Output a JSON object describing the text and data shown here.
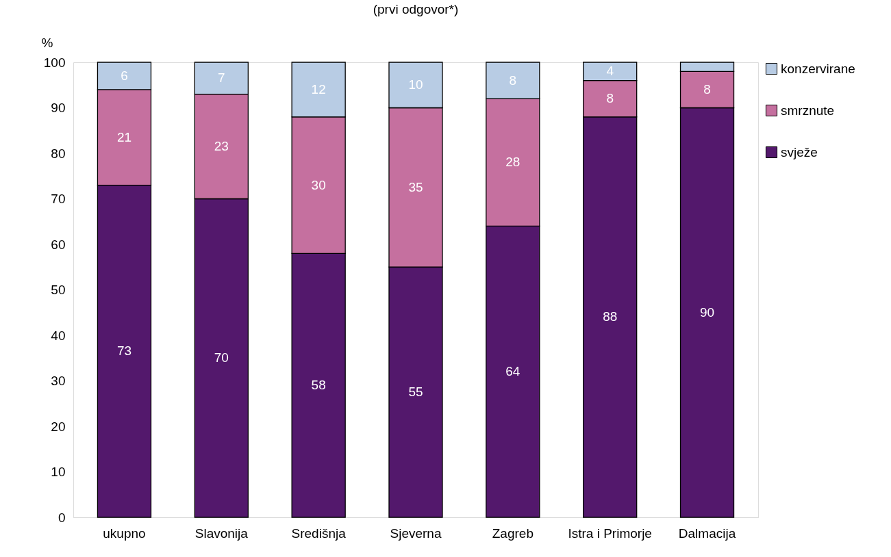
{
  "chart_data": {
    "type": "bar",
    "title": "(prvi odgovor*)",
    "ylabel": "%",
    "categories": [
      "ukupno",
      "Slavonija",
      "Središnja",
      "Sjeverna",
      "Zagreb",
      "Istra i Primorje",
      "Dalmacija"
    ],
    "series": [
      {
        "name": "svježe",
        "color": "#53186c",
        "values": [
          73,
          70,
          58,
          55,
          64,
          88,
          90
        ],
        "value_labels": [
          "73",
          "70",
          "58",
          "55",
          "64",
          "88",
          "90"
        ]
      },
      {
        "name": "smrznute",
        "color": "#c5709f",
        "values": [
          21,
          23,
          30,
          35,
          28,
          8,
          8
        ],
        "value_labels": [
          "21",
          "23",
          "30",
          "35",
          "28",
          "8",
          "8"
        ]
      },
      {
        "name": "konzervirane",
        "color": "#b8cce4",
        "values": [
          6,
          7,
          12,
          10,
          8,
          4,
          2
        ],
        "value_labels": [
          "6",
          "7",
          "12",
          "10",
          "8",
          "4",
          null
        ]
      }
    ],
    "stacked": true,
    "ylim": [
      0,
      100
    ],
    "yticks": [
      0,
      10,
      20,
      30,
      40,
      50,
      60,
      70,
      80,
      90,
      100
    ],
    "grid": false,
    "legend": "right"
  }
}
